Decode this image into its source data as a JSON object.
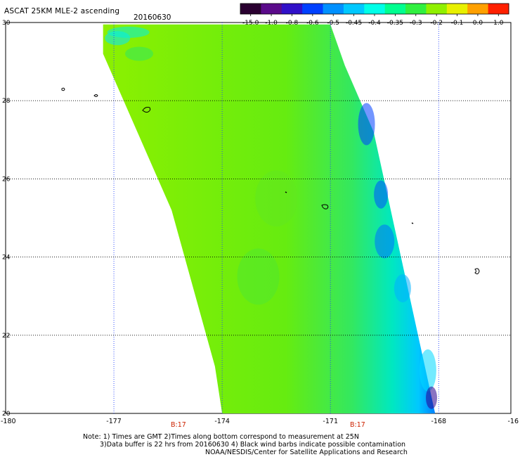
{
  "header": {
    "title": "ASCAT 25KM MLE-2 ascending",
    "date": "20160630"
  },
  "colorbar": {
    "labels": [
      "-15.0",
      "-1.0",
      "-0.8",
      "-0.6",
      "-0.5",
      "-0.45",
      "-0.4",
      "-0.35",
      "-0.3",
      "-0.2",
      "-0.1",
      "0.0",
      "1.0"
    ],
    "colors": [
      "#2a0030",
      "#5a0a8a",
      "#3010c8",
      "#0040ff",
      "#0090ff",
      "#00c8ff",
      "#00ffe8",
      "#00ff90",
      "#30f040",
      "#90f000",
      "#e8f000",
      "#ffa000",
      "#ff2000"
    ]
  },
  "map": {
    "x_axis": {
      "range": [
        -180,
        -166
      ],
      "labels": [
        "-180",
        "-177",
        "-174",
        "-171",
        "-168",
        "-16"
      ]
    },
    "y_axis": {
      "range": [
        20,
        30
      ],
      "labels": [
        "30",
        "28",
        "26",
        "24",
        "22",
        "20"
      ]
    },
    "time_marks": [
      "B:17",
      "B:17"
    ],
    "swath_color": "#7ef000"
  },
  "notes": {
    "line1": "Note: 1) Times are GMT 2)Times along bottom correspond to measurement at 25N",
    "line2": "3)Data buffer is 22 hrs from 20160630 4) Black wind barbs indicate possible contamination",
    "line3": "NOAA/NESDIS/Center for Satellite Applications and Research"
  }
}
